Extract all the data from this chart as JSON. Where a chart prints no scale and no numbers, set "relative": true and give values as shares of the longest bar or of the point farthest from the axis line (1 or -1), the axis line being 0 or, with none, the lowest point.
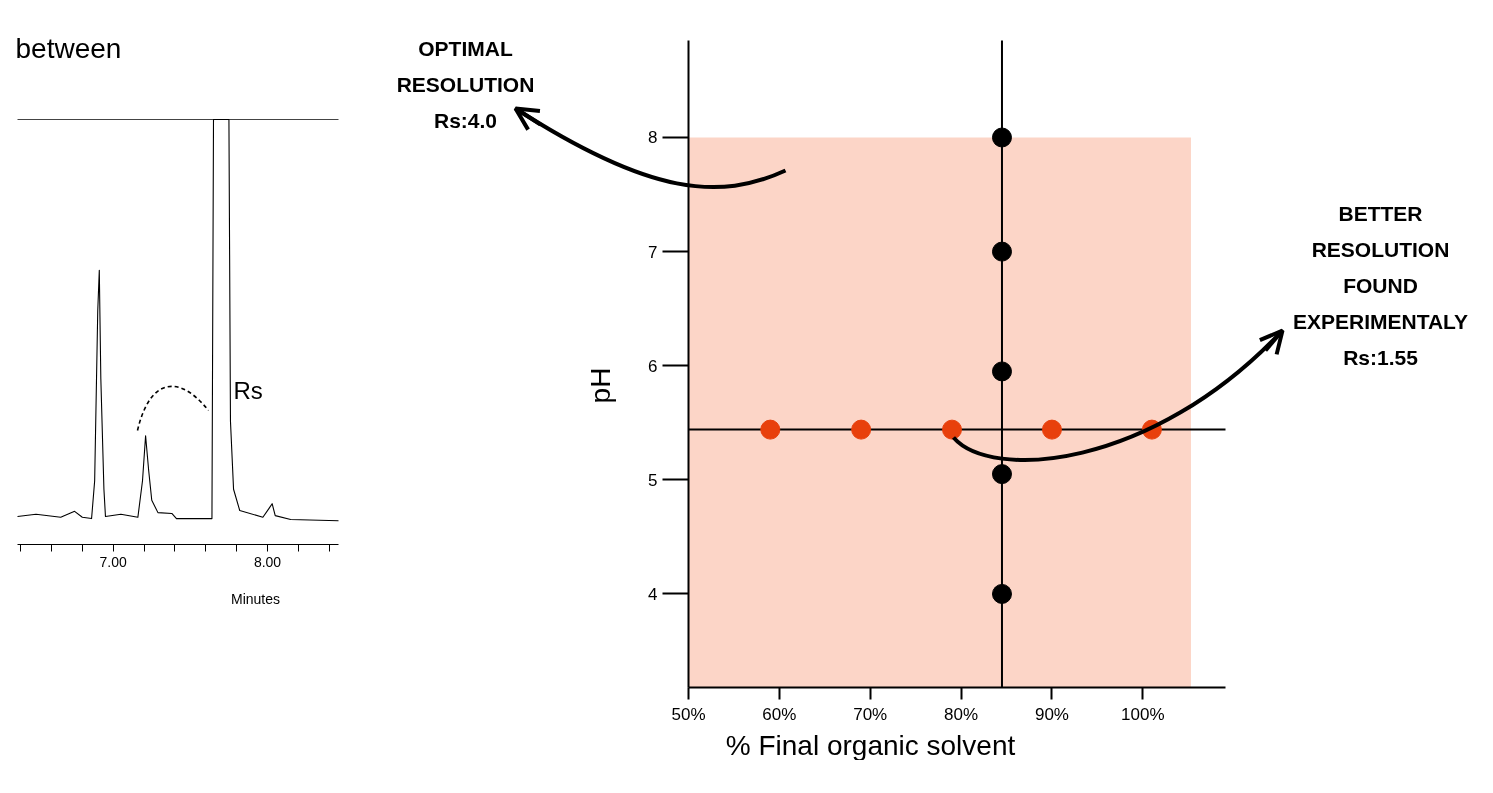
{
  "chart_data": [
    {
      "type": "line",
      "relative": true,
      "color": "#000000",
      "xlabel": "Minutes",
      "grid": false,
      "tick_labels": "x",
      "xlim": [
        6.38,
        8.46
      ],
      "xticks": [
        {
          "value": 6.4,
          "label": null
        },
        {
          "value": 6.6,
          "label": null
        },
        {
          "value": 6.8,
          "label": null
        },
        {
          "value": 7,
          "label": "7.00"
        },
        {
          "value": 7.2,
          "label": null
        },
        {
          "value": 7.4,
          "label": null
        },
        {
          "value": 7.6,
          "label": null
        },
        {
          "value": 7.8,
          "label": null
        },
        {
          "value": 8,
          "label": "8.00"
        },
        {
          "value": 8.2,
          "label": null
        },
        {
          "value": 8.4,
          "label": null
        }
      ],
      "x": [
        6.38,
        6.5,
        6.66,
        6.75,
        6.8,
        6.86,
        6.88,
        6.9,
        6.91,
        6.92,
        6.94,
        6.95,
        7.05,
        7.16,
        7.19,
        7.21,
        7.23,
        7.25,
        7.29,
        7.38,
        7.41,
        7.64,
        7.65,
        7.75,
        7.76,
        7.78,
        7.82,
        7.97,
        8.01,
        8.03,
        8.05,
        8.15,
        8.46
      ],
      "values": [
        0.066,
        0.071,
        0.064,
        0.078,
        0.064,
        0.061,
        0.15,
        0.55,
        0.645,
        0.39,
        0.13,
        0.066,
        0.071,
        0.064,
        0.15,
        0.256,
        0.174,
        0.104,
        0.075,
        0.073,
        0.061,
        0.061,
        1.0,
        1.0,
        0.29,
        0.13,
        0.08,
        0.064,
        0.085,
        0.096,
        0.068,
        0.059,
        0.056
      ],
      "annotations": [
        "between",
        "Rs"
      ]
    },
    {
      "type": "scatter",
      "xlabel": "% Final organic solvent",
      "ylabel": "pH",
      "marker": "circle",
      "grid": false,
      "xlim": [
        50,
        109.1
      ],
      "ylim": [
        3.18,
        8.85
      ],
      "xticks": [
        {
          "value": 50,
          "label": "50%"
        },
        {
          "value": 60,
          "label": "60%"
        },
        {
          "value": 70,
          "label": "70%"
        },
        {
          "value": 80,
          "label": "80%"
        },
        {
          "value": 90,
          "label": "90%"
        },
        {
          "value": 100,
          "label": "100%"
        }
      ],
      "yticks": [
        4,
        5,
        6,
        7,
        8
      ],
      "series": [
        {
          "color": "#e8400c",
          "x": [
            59,
            69,
            79,
            90,
            101
          ],
          "values": [
            5.44,
            5.44,
            5.44,
            5.44,
            5.44
          ]
        },
        {
          "color": "#000000",
          "x": [
            84.5,
            84.5,
            84.5,
            84.5,
            84.5
          ],
          "values": [
            8,
            7,
            5.95,
            5.05,
            4
          ]
        }
      ],
      "ref_lines": [
        {
          "axis": "y",
          "value": 5.44,
          "color": "#000000"
        },
        {
          "axis": "x",
          "value": 84.5,
          "color": "#000000"
        }
      ],
      "bands": [
        {
          "axis": "x",
          "from": 50,
          "to": 105.3,
          "color": "#fcd5c7"
        }
      ],
      "annotations": [
        "OPTIMAL\nRESOLUTION\nRs:4.0",
        "BETTER\nRESOLUTION\nFOUND\nEXPERIMENTALY\nRs:1.55"
      ]
    }
  ]
}
